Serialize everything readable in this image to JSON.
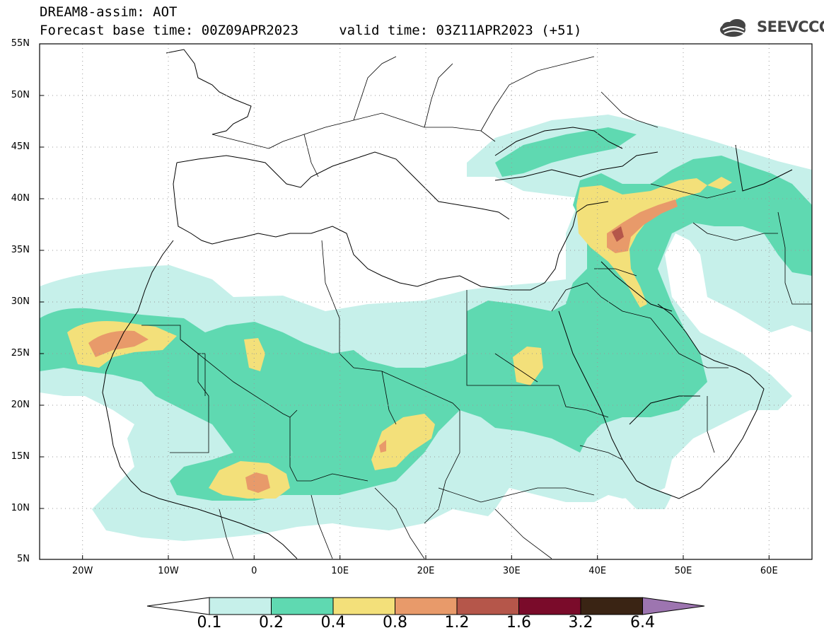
{
  "header": {
    "title_line1": "DREAM8-assim: AOT",
    "title_line2": "Forecast base time: 00Z09APR2023     valid time: 03Z11APR2023 (+51)"
  },
  "logo": {
    "text": "SEEVCCC",
    "icon": "cloud-logo-icon"
  },
  "map": {
    "lat_labels": [
      "55N",
      "50N",
      "45N",
      "40N",
      "35N",
      "30N",
      "25N",
      "20N",
      "15N",
      "10N",
      "5N"
    ],
    "lon_labels": [
      "20W",
      "10W",
      "0",
      "10E",
      "20E",
      "30E",
      "40E",
      "50E",
      "60E"
    ],
    "extent": {
      "lon_min": -25,
      "lon_max": 65,
      "lat_min": 5,
      "lat_max": 55
    },
    "grid": "dotted"
  },
  "colorbar": {
    "labels": [
      "0.1",
      "0.2",
      "0.4",
      "0.8",
      "1.2",
      "1.6",
      "3.2",
      "6.4"
    ],
    "colors": [
      "#c6f0ea",
      "#5fd9b1",
      "#f3e07a",
      "#e89a6a",
      "#b5564a",
      "#7a0b2a",
      "#3a2414",
      "#9d75b0"
    ],
    "underflow_color": "#ffffff"
  },
  "palette": {
    "c1": "#c6f0ea",
    "c2": "#5fd9b1",
    "c3": "#f3e07a",
    "c4": "#e89a6a",
    "c5": "#b5564a"
  }
}
